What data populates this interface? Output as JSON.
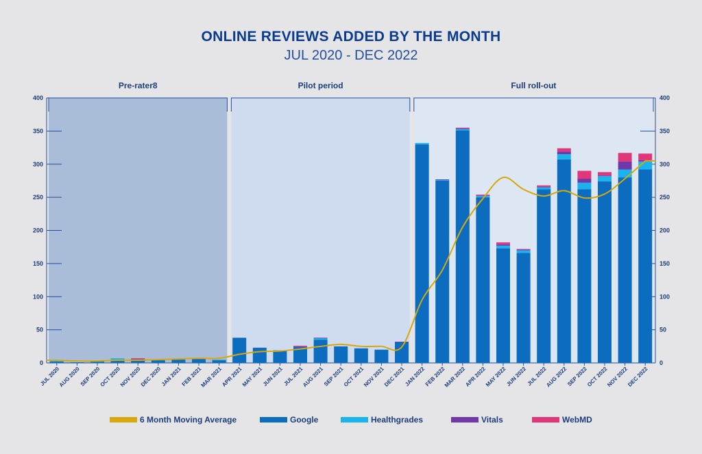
{
  "chart_data": {
    "type": "bar",
    "stacked": true,
    "title": "ONLINE REVIEWS ADDED BY THE MONTH",
    "subtitle": "JUL 2020 - DEC 2022",
    "ylim": [
      0,
      400
    ],
    "yticks": [
      "0",
      "50",
      "100",
      "150",
      "200",
      "250",
      "300",
      "350",
      "400"
    ],
    "periods": [
      {
        "label": "Pre-rater8",
        "start": "JUL 2020",
        "end": "MAR 2021",
        "color": "#a9bdd8"
      },
      {
        "label": "Pilot period",
        "start": "APR 2021",
        "end": "DEC 2021",
        "color": "#cfdcef"
      },
      {
        "label": "Full roll-out",
        "start": "JAN 2022",
        "end": "DEC 2022",
        "color": "#dde7f4"
      }
    ],
    "categories": [
      "JUL 2020",
      "AUG 2020",
      "SEP 2020",
      "OCT 2020",
      "NOV 2020",
      "DEC 2020",
      "JAN 2021",
      "FEB 2021",
      "MAR 2021",
      "APR 2021",
      "MAY 2021",
      "JUN 2021",
      "JUL 2021",
      "AUG 2021",
      "SEP 2021",
      "OCT 2021",
      "NOV 2021",
      "DEC 2021",
      "JAN 2022",
      "FEB 2022",
      "MAR 2022",
      "APR 2022",
      "MAY 2022",
      "JUN 2022",
      "JUL 2022",
      "AUG 2022",
      "SEP 2022",
      "OCT 2022",
      "NOV 2022",
      "DEC 2022"
    ],
    "series": [
      {
        "name": "Google",
        "color": "#0b6cc0",
        "values": [
          2,
          1,
          2,
          4,
          4,
          4,
          5,
          6,
          4,
          38,
          23,
          19,
          24,
          35,
          25,
          22,
          20,
          31,
          330,
          275,
          351,
          250,
          173,
          166,
          262,
          307,
          262,
          274,
          280,
          292
        ]
      },
      {
        "name": "Healthgrades",
        "color": "#1ab3ee",
        "values": [
          1,
          0,
          1,
          3,
          1,
          1,
          0,
          0,
          1,
          0,
          0,
          0,
          0,
          2,
          0,
          0,
          0,
          0,
          2,
          1,
          2,
          2,
          4,
          4,
          3,
          8,
          10,
          8,
          12,
          12
        ]
      },
      {
        "name": "Vitals",
        "color": "#7038a8",
        "values": [
          0,
          0,
          0,
          0,
          1,
          0,
          0,
          0,
          0,
          0,
          0,
          0,
          1,
          1,
          0,
          0,
          0,
          1,
          0,
          1,
          1,
          1,
          2,
          1,
          1,
          4,
          6,
          1,
          12,
          2
        ]
      },
      {
        "name": "WebMD",
        "color": "#e0367a",
        "values": [
          0,
          0,
          0,
          0,
          1,
          0,
          0,
          0,
          0,
          0,
          0,
          0,
          1,
          0,
          0,
          0,
          0,
          0,
          0,
          0,
          1,
          1,
          3,
          1,
          2,
          5,
          12,
          5,
          13,
          10
        ]
      }
    ],
    "moving_average": {
      "name": "6 Month Moving Average",
      "color": "#d7a80c",
      "values": [
        4,
        3,
        3,
        4,
        4,
        5,
        6,
        7,
        7,
        13,
        17,
        18,
        21,
        25,
        28,
        25,
        25,
        24,
        95,
        140,
        205,
        248,
        280,
        262,
        252,
        260,
        249,
        255,
        278,
        305
      ]
    },
    "legend": [
      {
        "label": "6 Month Moving Average",
        "color": "#d7a80c"
      },
      {
        "label": "Google",
        "color": "#0b6cc0"
      },
      {
        "label": "Healthgrades",
        "color": "#1ab3ee"
      },
      {
        "label": "Vitals",
        "color": "#7038a8"
      },
      {
        "label": "WebMD",
        "color": "#e0367a"
      }
    ],
    "legend_position": "bottom",
    "grid": false
  }
}
